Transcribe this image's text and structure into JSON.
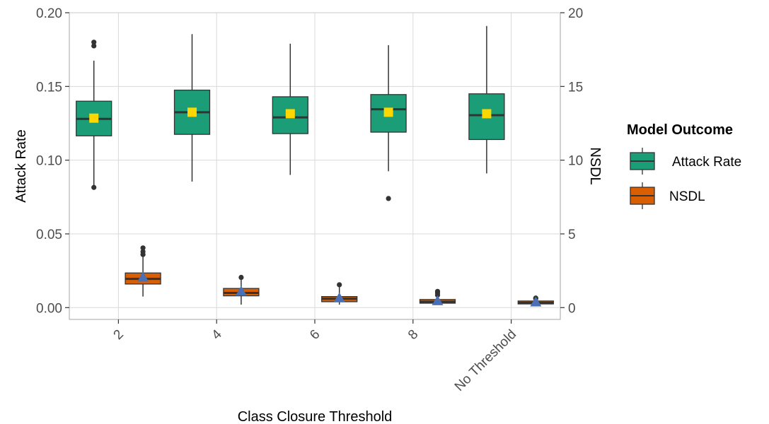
{
  "chart_data": {
    "type": "box",
    "xlabel": "Class Closure Threshold",
    "ylabel_left": "Attack Rate",
    "ylabel_right": "NSDL",
    "ylim_left": [
      -0.008,
      0.2
    ],
    "ylim_right": [
      -0.8,
      20
    ],
    "yticks_left": [
      0.0,
      0.05,
      0.1,
      0.15,
      0.2
    ],
    "ytick_labels_left": [
      "0.00",
      "0.05",
      "0.10",
      "0.15",
      "0.20"
    ],
    "yticks_right": [
      0,
      5,
      10,
      15,
      20
    ],
    "ytick_labels_right": [
      "0",
      "5",
      "10",
      "15",
      "20"
    ],
    "categories": [
      "2",
      "4",
      "6",
      "8",
      "No Threshold"
    ],
    "grid": true,
    "legend": {
      "title": "Model Outcome",
      "position": "right",
      "items": [
        {
          "label": "Attack Rate",
          "color": "#1b9e77"
        },
        {
          "label": "NSDL",
          "color": "#d95f02"
        }
      ]
    },
    "series": [
      {
        "name": "Attack Rate",
        "axis": "left",
        "color": "#1b9e77",
        "mean_marker_color": "#ffd700",
        "mean_marker": "square",
        "boxes": [
          {
            "category": "2",
            "whisker_low": 0.0815,
            "q1": 0.1165,
            "median": 0.128,
            "q3": 0.14,
            "whisker_high": 0.1675,
            "mean": 0.1285,
            "outliers": [
              0.0815,
              0.1775,
              0.18
            ]
          },
          {
            "category": "4",
            "whisker_low": 0.0855,
            "q1": 0.1175,
            "median": 0.1325,
            "q3": 0.1475,
            "whisker_high": 0.1855,
            "mean": 0.1325,
            "outliers": []
          },
          {
            "category": "6",
            "whisker_low": 0.09,
            "q1": 0.118,
            "median": 0.129,
            "q3": 0.143,
            "whisker_high": 0.179,
            "mean": 0.1315,
            "outliers": []
          },
          {
            "category": "8",
            "whisker_low": 0.0925,
            "q1": 0.119,
            "median": 0.1345,
            "q3": 0.1445,
            "whisker_high": 0.178,
            "mean": 0.1325,
            "outliers": [
              0.074
            ]
          },
          {
            "category": "No Threshold",
            "whisker_low": 0.091,
            "q1": 0.114,
            "median": 0.1305,
            "q3": 0.145,
            "whisker_high": 0.191,
            "mean": 0.1315,
            "outliers": []
          }
        ]
      },
      {
        "name": "NSDL",
        "axis": "right",
        "color": "#d95f02",
        "mean_marker_color": "#4a6fb5",
        "mean_marker": "triangle",
        "boxes": [
          {
            "category": "2",
            "whisker_low": 0.75,
            "q1": 1.6,
            "median": 1.95,
            "q3": 2.35,
            "whisker_high": 3.5,
            "mean": 2.05,
            "outliers": [
              3.6,
              3.8,
              4.05
            ]
          },
          {
            "category": "4",
            "whisker_low": 0.2,
            "q1": 0.8,
            "median": 1.0,
            "q3": 1.3,
            "whisker_high": 1.9,
            "mean": 1.1,
            "outliers": [
              2.05
            ]
          },
          {
            "category": "6",
            "whisker_low": 0.2,
            "q1": 0.4,
            "median": 0.6,
            "q3": 0.75,
            "whisker_high": 1.4,
            "mean": 0.65,
            "outliers": [
              1.55
            ]
          },
          {
            "category": "8",
            "whisker_low": 0.2,
            "q1": 0.3,
            "median": 0.4,
            "q3": 0.55,
            "whisker_high": 0.75,
            "mean": 0.45,
            "outliers": [
              0.85,
              1.0,
              1.1
            ]
          },
          {
            "category": "No Threshold",
            "whisker_low": 0.2,
            "q1": 0.25,
            "median": 0.33,
            "q3": 0.45,
            "whisker_high": 0.55,
            "mean": 0.37,
            "outliers": [
              0.6,
              0.65
            ]
          }
        ]
      }
    ]
  }
}
